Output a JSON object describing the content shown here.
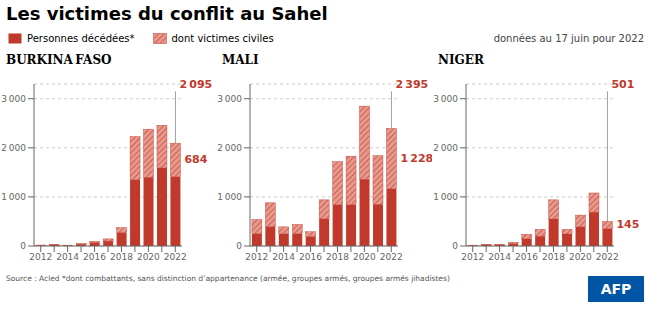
{
  "chart_data": [
    {
      "type": "bar",
      "stacked": true,
      "grid": true,
      "title": "Les victimes du conflit au Sahel",
      "subtitle": "BURKINA FASO",
      "categories": [
        "2012",
        null,
        "2014",
        null,
        "2016",
        null,
        "2018",
        null,
        "2020",
        null,
        "2022"
      ],
      "series": [
        {
          "name": "Personnes décédées*",
          "color": "#c0392b",
          "values": [
            16,
            22,
            14,
            38,
            67,
            100,
            275,
            1350,
            1400,
            1590,
            1411
          ]
        },
        {
          "name": "dont victimes civiles",
          "color": "#e8998d",
          "values": [
            4,
            6,
            4,
            10,
            28,
            45,
            100,
            880,
            980,
            870,
            684
          ]
        }
      ],
      "ylim": [
        0,
        3300
      ],
      "yticks": [
        0,
        {
          "value": 1000,
          "label": "1 000"
        },
        {
          "value": 2000,
          "label": "2 000"
        },
        {
          "value": 3000,
          "label": "3 000"
        }
      ],
      "annotations": [
        {
          "text": "2 095",
          "x": "2022",
          "y": 2095
        },
        {
          "text": "684",
          "x": "2022",
          "y": 684
        },
        {
          "text": "données au 17 juin pour 2022"
        },
        {
          "text": "Source : Acled   *dont combattants, sans distinction d’appartenance (armée, groupes armés, groupes armés jihadistes)"
        },
        {
          "text": "AFP"
        }
      ]
    },
    {
      "type": "bar",
      "stacked": true,
      "grid": true,
      "subtitle": "MALI",
      "categories": [
        "2012",
        null,
        "2014",
        null,
        "2016",
        null,
        "2018",
        null,
        "2020",
        null,
        "2022"
      ],
      "series": [
        {
          "name": "Personnes décédées*",
          "color": "#c0392b",
          "values": [
            250,
            390,
            250,
            250,
            195,
            550,
            840,
            840,
            1360,
            850,
            1167
          ]
        },
        {
          "name": "dont victimes civiles",
          "color": "#e8998d",
          "values": [
            290,
            490,
            140,
            190,
            95,
            390,
            880,
            990,
            1490,
            990,
            1228
          ]
        }
      ],
      "ylim": [
        0,
        3300
      ],
      "yticks": [
        0,
        {
          "value": 1000,
          "label": "1 000"
        },
        {
          "value": 2000,
          "label": "2 000"
        },
        {
          "value": 3000,
          "label": "3 000"
        }
      ],
      "annotations": [
        {
          "text": "2 395",
          "x": "2022",
          "y": 2395
        },
        {
          "text": "1 228",
          "x": "2022",
          "y": 1228
        }
      ]
    },
    {
      "type": "bar",
      "stacked": true,
      "grid": true,
      "subtitle": "NIGER",
      "categories": [
        "2012",
        null,
        "2014",
        null,
        "2016",
        null,
        "2018",
        null,
        "2020",
        null,
        "2022"
      ],
      "series": [
        {
          "name": "Personnes décédées*",
          "color": "#c0392b",
          "values": [
            14,
            22,
            22,
            47,
            145,
            200,
            550,
            245,
            390,
            690,
            356
          ]
        },
        {
          "name": "dont victimes civiles",
          "color": "#e8998d",
          "values": [
            4,
            6,
            6,
            28,
            95,
            140,
            390,
            95,
            240,
            390,
            145
          ]
        }
      ],
      "ylim": [
        0,
        3300
      ],
      "yticks": [
        0,
        {
          "value": 1000,
          "label": "1 000"
        },
        {
          "value": 2000,
          "label": "2 000"
        },
        {
          "value": 3000,
          "label": "3 000"
        }
      ],
      "annotations": [
        {
          "text": "501",
          "x": "2022",
          "y": 501
        },
        {
          "text": "145",
          "x": "2022",
          "y": 145
        }
      ]
    }
  ]
}
